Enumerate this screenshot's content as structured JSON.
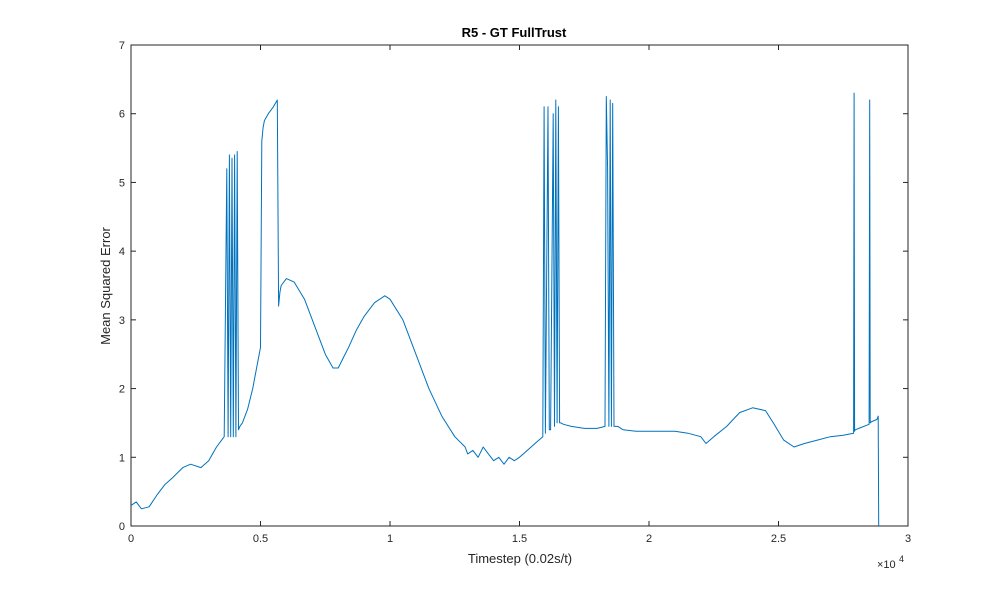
{
  "chart_data": {
    "type": "line",
    "title": "R5 - GT FullTrust",
    "xlabel": "Timestep (0.02s/t)",
    "ylabel": "Mean Squared Error",
    "xlim": [
      0,
      30000
    ],
    "ylim": [
      0,
      7
    ],
    "x_exponent_label": "×10",
    "x_exponent_power": "4",
    "xticks": [
      0,
      5000,
      10000,
      15000,
      20000,
      25000,
      30000
    ],
    "xtick_labels": [
      "0",
      "0.5",
      "1",
      "1.5",
      "2",
      "2.5",
      "3"
    ],
    "yticks": [
      0,
      1,
      2,
      3,
      4,
      5,
      6,
      7
    ],
    "ytick_labels": [
      "0",
      "1",
      "2",
      "3",
      "4",
      "5",
      "6",
      "7"
    ],
    "grid": false,
    "series_color": "#0072BD",
    "series": [
      {
        "x": [
          0,
          200,
          400,
          700,
          1000,
          1300,
          1600,
          2000,
          2300,
          2700,
          3000,
          3300,
          3500,
          3600,
          3700,
          3750,
          3800,
          3850,
          3900,
          3950,
          4000,
          4050,
          4100,
          4150,
          4200,
          4300,
          4500,
          4700,
          4900,
          5000,
          5050,
          5100,
          5150,
          5300,
          5500,
          5650,
          5700,
          5750,
          5800,
          6000,
          6300,
          6700,
          7100,
          7500,
          7800,
          8000,
          8200,
          8400,
          8700,
          9000,
          9400,
          9800,
          10000,
          10500,
          11000,
          11500,
          12000,
          12500,
          12900,
          13000,
          13200,
          13400,
          13600,
          13800,
          14000,
          14200,
          14400,
          14600,
          14800,
          15000,
          15300,
          15600,
          15900,
          15950,
          16000,
          16100,
          16150,
          16200,
          16300,
          16350,
          16400,
          16450,
          16500,
          16550,
          16600,
          16700,
          17000,
          17500,
          18000,
          18300,
          18350,
          18400,
          18450,
          18500,
          18550,
          18600,
          18650,
          18700,
          18800,
          19000,
          19500,
          20000,
          20500,
          21000,
          21500,
          22000,
          22200,
          22500,
          23000,
          23500,
          24000,
          24500,
          24800,
          25200,
          25600,
          26000,
          26500,
          27000,
          27500,
          27900,
          27920,
          27940,
          27960,
          28100,
          28500,
          28520,
          28540,
          28600,
          28800,
          28850,
          28870
        ],
        "y": [
          0.3,
          0.35,
          0.25,
          0.28,
          0.45,
          0.6,
          0.7,
          0.85,
          0.9,
          0.85,
          0.95,
          1.15,
          1.25,
          1.3,
          5.2,
          1.3,
          5.4,
          1.3,
          5.35,
          1.3,
          5.4,
          1.3,
          5.45,
          1.4,
          1.45,
          1.5,
          1.7,
          2.0,
          2.4,
          2.6,
          5.6,
          5.8,
          5.9,
          6.0,
          6.1,
          6.2,
          3.2,
          3.4,
          3.5,
          3.6,
          3.55,
          3.3,
          2.9,
          2.5,
          2.3,
          2.3,
          2.45,
          2.6,
          2.85,
          3.05,
          3.25,
          3.35,
          3.3,
          3.0,
          2.5,
          2.0,
          1.6,
          1.3,
          1.15,
          1.05,
          1.1,
          1.0,
          1.15,
          1.05,
          0.95,
          1.0,
          0.9,
          1.0,
          0.95,
          1.0,
          1.1,
          1.2,
          1.3,
          6.1,
          1.35,
          6.1,
          1.4,
          1.4,
          6.0,
          1.45,
          6.2,
          1.5,
          6.1,
          1.5,
          1.5,
          1.48,
          1.45,
          1.42,
          1.42,
          1.45,
          6.25,
          5.2,
          1.45,
          6.2,
          1.45,
          6.15,
          1.45,
          1.45,
          1.45,
          1.4,
          1.38,
          1.38,
          1.38,
          1.38,
          1.35,
          1.3,
          1.2,
          1.3,
          1.45,
          1.65,
          1.72,
          1.68,
          1.5,
          1.25,
          1.15,
          1.2,
          1.25,
          1.3,
          1.32,
          1.35,
          6.3,
          1.38,
          1.4,
          1.42,
          1.48,
          6.2,
          1.5,
          1.52,
          1.55,
          1.6,
          0.0
        ]
      }
    ]
  }
}
